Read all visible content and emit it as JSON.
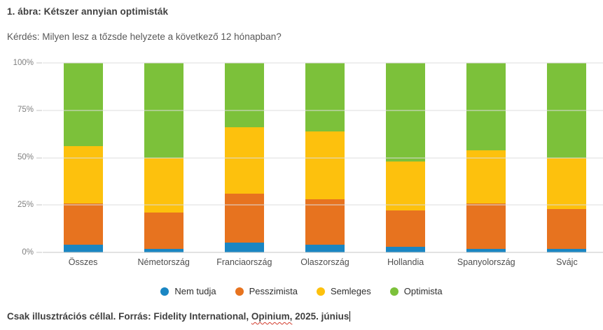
{
  "doc": {
    "title": "1. ábra: Kétszer annyian optimisták",
    "question": "Kérdés: Milyen lesz a tőzsde helyzete a következő 12 hónapban?",
    "footer": {
      "part1": "Csak illusztrációs céllal. Forrás: Fidelity International, ",
      "misspelled_word": "Opinium,",
      "part2": " 2025. június"
    }
  },
  "colors": {
    "nem_tudja_blue": "#1a86c3",
    "pesszimista_orange": "#e7731f",
    "semleges_yellow": "#fdc10d",
    "optimista_green": "#7cc13a",
    "gridline": "#dcdcdc",
    "axis": "#c6c6c6",
    "spellcheck_red": "#d23b2c"
  },
  "chart_data": {
    "type": "bar",
    "stacked": true,
    "stacked_total": 100,
    "title": "",
    "xlabel": "",
    "ylabel": "",
    "ylim": [
      0,
      100
    ],
    "grid": true,
    "legend_position": "bottom",
    "yticks": [
      "0%",
      "25%",
      "50%",
      "75%",
      "100%"
    ],
    "categories": [
      "Összes",
      "Németország",
      "Franciaország",
      "Olaszország",
      "Hollandia",
      "Spanyolország",
      "Svájc"
    ],
    "series": [
      {
        "name": "Nem tudja",
        "color": "#1a86c3",
        "values": [
          4,
          2,
          5,
          4,
          3,
          2,
          2
        ]
      },
      {
        "name": "Pesszimista",
        "color": "#e7731f",
        "values": [
          22,
          19,
          26,
          24,
          19,
          24,
          21
        ]
      },
      {
        "name": "Semleges",
        "color": "#fdc10d",
        "values": [
          30,
          29,
          35,
          36,
          26,
          28,
          27
        ]
      },
      {
        "name": "Optimista",
        "color": "#7cc13a",
        "values": [
          44,
          50,
          34,
          36,
          52,
          46,
          50
        ]
      }
    ]
  }
}
